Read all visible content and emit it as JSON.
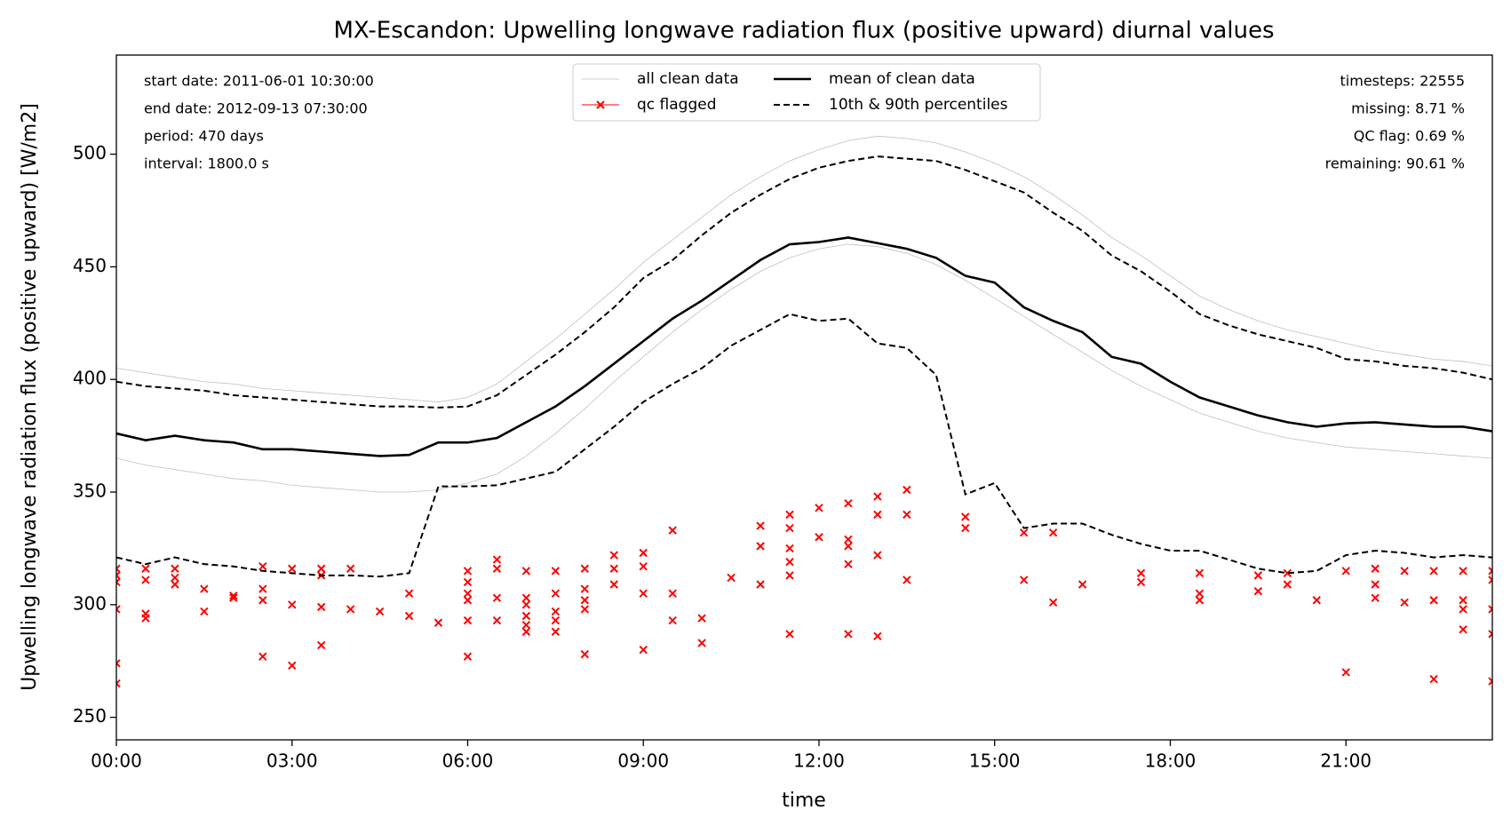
{
  "chart_data": {
    "type": "line",
    "title": "MX-Escandon: Upwelling longwave radiation flux (positive upward) diurnal values",
    "x_label": "time",
    "y_label": "Upwelling longwave radiation flux (positive upward) [W/m2]",
    "annotations_left": [
      "start date: 2011-06-01 10:30:00",
      "end date: 2012-09-13 07:30:00",
      "period: 470 days",
      "interval: 1800.0 s"
    ],
    "annotations_right": [
      "timesteps: 22555",
      "missing: 8.71 %",
      "QC flag: 0.69 %",
      "remaining: 90.61 %"
    ],
    "xlim": [
      0,
      23.5
    ],
    "ylim": [
      240,
      544
    ],
    "xticks": [
      {
        "value": 0,
        "label": "00:00"
      },
      {
        "value": 3,
        "label": "03:00"
      },
      {
        "value": 6,
        "label": "06:00"
      },
      {
        "value": 9,
        "label": "09:00"
      },
      {
        "value": 12,
        "label": "12:00"
      },
      {
        "value": 15,
        "label": "15:00"
      },
      {
        "value": 18,
        "label": "18:00"
      },
      {
        "value": 21,
        "label": "21:00"
      }
    ],
    "yticks": [
      250,
      300,
      350,
      400,
      450,
      500
    ],
    "x": [
      0,
      0.5,
      1,
      1.5,
      2,
      2.5,
      3,
      3.5,
      4,
      4.5,
      5,
      5.5,
      6,
      6.5,
      7,
      7.5,
      8,
      8.5,
      9,
      9.5,
      10,
      10.5,
      11,
      11.5,
      12,
      12.5,
      13,
      13.5,
      14,
      14.5,
      15,
      15.5,
      16,
      16.5,
      17,
      17.5,
      18,
      18.5,
      19,
      19.5,
      20,
      20.5,
      21,
      21.5,
      22,
      22.5,
      23,
      23.5
    ],
    "series": [
      {
        "name": "all clean data",
        "color": "#c0c0c0",
        "style": "thin",
        "values": [
          [
            405,
            403,
            401,
            399,
            398,
            396,
            395,
            394,
            393,
            392,
            391,
            390,
            392,
            398,
            408,
            418,
            429,
            440,
            452,
            462,
            472,
            482,
            490,
            497,
            502,
            506,
            508,
            507,
            505,
            501,
            496,
            490,
            482,
            473,
            463,
            455,
            446,
            437,
            431,
            426,
            422,
            419,
            416,
            413,
            411,
            409,
            408,
            406
          ],
          [
            365,
            362,
            360,
            358,
            356,
            355,
            353,
            352,
            351,
            350,
            350,
            351,
            354,
            358,
            366,
            376,
            387,
            399,
            410,
            421,
            431,
            440,
            448,
            454,
            458,
            460,
            459,
            456,
            451,
            444,
            436,
            428,
            420,
            412,
            404,
            397,
            391,
            385,
            381,
            377,
            374,
            372,
            370,
            369,
            368,
            367,
            366,
            365
          ]
        ]
      },
      {
        "name": "qc flagged",
        "color": "#ff0000",
        "style": "scatter",
        "x": [
          0,
          0,
          0,
          0,
          0,
          0,
          0.5,
          0.5,
          0.5,
          0.5,
          1,
          1,
          1,
          1.5,
          1.5,
          2,
          2,
          2.5,
          2.5,
          2.5,
          2.5,
          3,
          3,
          3,
          3.5,
          3.5,
          3.5,
          3.5,
          4,
          4,
          4.5,
          5,
          5,
          5.5,
          6,
          6,
          6,
          6,
          6,
          6,
          6.5,
          6.5,
          6.5,
          6.5,
          7,
          7,
          7,
          7,
          7,
          7,
          7.5,
          7.5,
          7.5,
          7.5,
          7.5,
          8,
          8,
          8,
          8,
          8,
          8.5,
          8.5,
          8.5,
          9,
          9,
          9,
          9,
          9.5,
          9.5,
          9.5,
          10,
          10,
          10.5,
          11,
          11,
          11,
          11.5,
          11.5,
          11.5,
          11.5,
          11.5,
          11.5,
          12,
          12,
          12.5,
          12.5,
          12.5,
          12.5,
          12.5,
          13,
          13,
          13,
          13,
          13.5,
          13.5,
          13.5,
          14.5,
          14.5,
          15.5,
          15.5,
          16,
          16,
          16.5,
          17.5,
          17.5,
          18.5,
          18.5,
          18.5,
          19.5,
          19.5,
          20,
          20,
          20.5,
          21,
          21,
          21.5,
          21.5,
          21.5,
          22,
          22,
          22.5,
          22.5,
          22.5,
          23,
          23,
          23,
          23,
          23.5,
          23.5,
          23.5,
          23.5,
          23.5
        ],
        "values": [
          274,
          265,
          316,
          313,
          310,
          298,
          316,
          311,
          296,
          294,
          316,
          312,
          309,
          307,
          297,
          304,
          303,
          317,
          307,
          302,
          277,
          316,
          300,
          273,
          316,
          313,
          299,
          282,
          316,
          298,
          297,
          305,
          295,
          292,
          315,
          310,
          305,
          302,
          293,
          277,
          320,
          316,
          303,
          293,
          315,
          303,
          300,
          295,
          291,
          288,
          315,
          305,
          297,
          293,
          288,
          316,
          307,
          302,
          298,
          278,
          322,
          316,
          309,
          323,
          317,
          305,
          280,
          333,
          305,
          293,
          294,
          283,
          312,
          335,
          326,
          309,
          340,
          334,
          325,
          319,
          313,
          287,
          343,
          330,
          345,
          329,
          326,
          318,
          287,
          348,
          340,
          322,
          286,
          351,
          340,
          311,
          339,
          334,
          332,
          311,
          332,
          301,
          309,
          314,
          310,
          314,
          305,
          302,
          313,
          306,
          314,
          309,
          302,
          315,
          270,
          316,
          309,
          303,
          315,
          301,
          315,
          302,
          267,
          315,
          302,
          298,
          289,
          315,
          311,
          298,
          287,
          266
        ]
      },
      {
        "name": "mean of clean data",
        "color": "#000000",
        "style": "solid",
        "values": [
          [
            376,
            373,
            375,
            373,
            372,
            369,
            369,
            368,
            367,
            366,
            366.5,
            372,
            372,
            374,
            381,
            388,
            397,
            407,
            417,
            427,
            435,
            444,
            453,
            460,
            461,
            463,
            460.5,
            458,
            454,
            446,
            443,
            432,
            426,
            421,
            410,
            407,
            399,
            392,
            388,
            384,
            381,
            379,
            380.5,
            381,
            380,
            379,
            379,
            377
          ]
        ]
      },
      {
        "name": "10th & 90th percentiles",
        "color": "#000000",
        "style": "dashed",
        "values": [
          [
            321,
            318,
            321,
            318,
            317,
            315,
            314,
            313,
            313,
            312.5,
            314,
            352.5,
            352.5,
            353,
            356,
            359,
            369,
            379,
            390,
            398,
            405,
            415,
            422,
            429,
            426,
            427,
            416,
            414,
            402,
            349,
            354,
            334,
            336,
            336,
            331,
            327,
            324,
            324,
            320,
            316,
            314,
            315,
            322,
            324,
            323,
            321,
            322,
            321
          ],
          [
            399,
            397,
            396,
            395,
            393,
            392,
            391,
            390,
            389,
            388,
            388,
            387.5,
            388,
            393,
            402,
            411,
            421,
            432,
            445,
            453,
            464,
            474,
            482,
            489,
            494,
            497,
            499,
            498,
            497,
            493,
            488,
            483,
            474,
            466,
            455,
            448,
            439,
            429,
            424,
            420,
            417,
            414,
            409,
            408,
            406,
            405,
            403,
            400
          ]
        ]
      }
    ]
  }
}
